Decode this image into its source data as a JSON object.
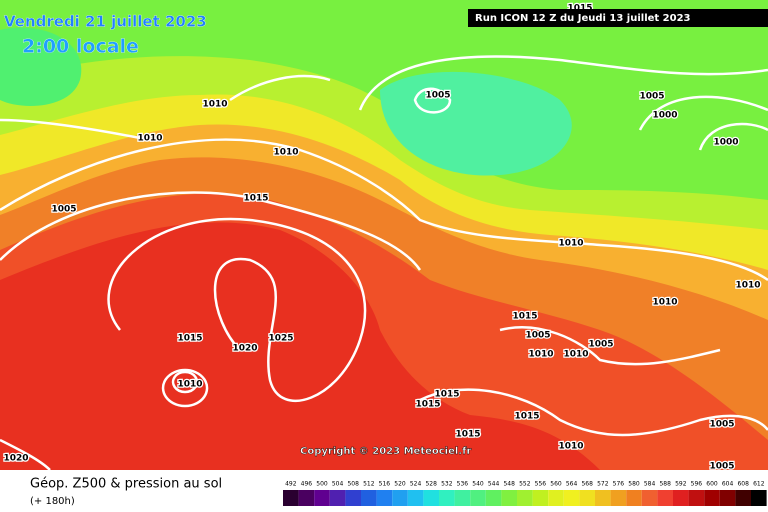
{
  "header": {
    "date": "Vendredi 21 juillet 2023",
    "time": "2:00 locale",
    "run": "Run ICON 12 Z du Jeudi 13 juillet 2023"
  },
  "copyright": "Copyright © 2023 Meteociel.fr",
  "footer": {
    "title": "Géop. Z500 & pression au sol",
    "lead": "(+ 180h)"
  },
  "isobar_labels": [
    1015,
    1010,
    1005,
    1005,
    1000,
    1000,
    1010,
    1010,
    1005,
    1015,
    1010,
    1010,
    1010,
    1015,
    1005,
    1015,
    1020,
    1025,
    1010,
    1010,
    1010,
    1005,
    1015,
    1015,
    1015,
    1015,
    1010,
    1005,
    1005,
    1020
  ],
  "colorbar": {
    "labels": [
      492,
      496,
      500,
      504,
      508,
      512,
      516,
      520,
      524,
      528,
      532,
      536,
      540,
      544,
      548,
      552,
      556,
      560,
      564,
      568,
      572,
      576,
      580,
      584,
      588,
      592,
      596,
      600,
      604,
      608,
      612
    ],
    "colors": [
      "#2a0030",
      "#4a0060",
      "#600090",
      "#5020b0",
      "#3040d0",
      "#2060e0",
      "#2080f0",
      "#20a0f0",
      "#20c0f0",
      "#20e0e0",
      "#30f0c0",
      "#40f0a0",
      "#50f080",
      "#60f060",
      "#80f040",
      "#a0f030",
      "#c0f020",
      "#e0f020",
      "#f0f020",
      "#f0e020",
      "#f0c020",
      "#f0a020",
      "#f08020",
      "#f06030",
      "#f04030",
      "#e02020",
      "#c01010",
      "#a00000",
      "#800000",
      "#400000",
      "#000000"
    ]
  }
}
